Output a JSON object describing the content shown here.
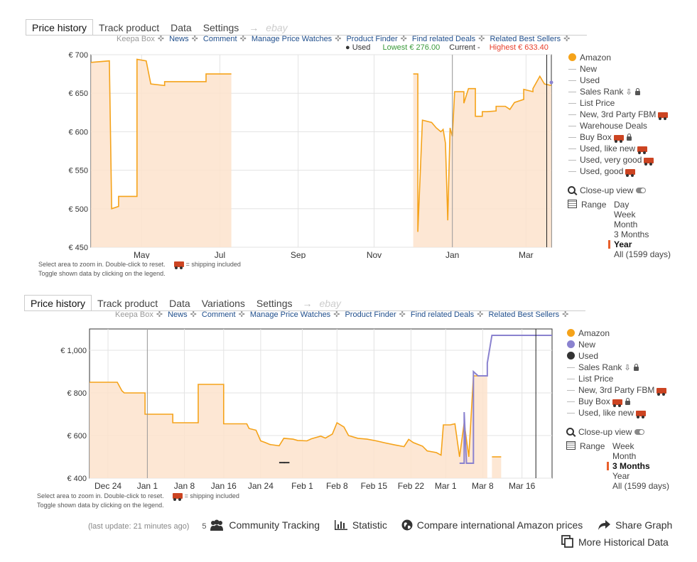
{
  "panel1": {
    "tabs": [
      "Price history",
      "Track product",
      "Data",
      "Settings"
    ],
    "arrow": "→",
    "ebay": "ebay",
    "links": [
      "Keepa Box",
      "News",
      "Comment",
      "Manage Price Watches",
      "Product Finder",
      "Find related Deals",
      "Related Best Sellers"
    ],
    "status": {
      "used": "Used",
      "lowest": "Lowest € 276.00",
      "current": "Current -",
      "highest": "Highest € 633.40"
    },
    "hint1": "Select area to zoom in. Double-click to reset.",
    "hint_ship": "= shipping included",
    "hint2": "Toggle shown data by clicking on the legend.",
    "legend": [
      "Amazon",
      "New",
      "Used",
      "Sales Rank",
      "List Price",
      "New, 3rd Party FBM",
      "Warehouse Deals",
      "Buy Box",
      "Used, like new",
      "Used, very good",
      "Used, good"
    ],
    "closeup": "Close-up view",
    "range_label": "Range",
    "range_options": [
      "Day",
      "Week",
      "Month",
      "3 Months",
      "Year",
      "All (1599 days)"
    ],
    "range_selected": "Year"
  },
  "panel2": {
    "tabs": [
      "Price history",
      "Track product",
      "Data",
      "Variations",
      "Settings"
    ],
    "arrow": "→",
    "ebay": "ebay",
    "links": [
      "Keepa Box",
      "News",
      "Comment",
      "Manage Price Watches",
      "Product Finder",
      "Find related Deals",
      "Related Best Sellers"
    ],
    "hint1": "Select area to zoom in. Double-click to reset.",
    "hint_ship": "= shipping included",
    "hint2": "Toggle shown data by clicking on the legend.",
    "legend": [
      "Amazon",
      "New",
      "Used",
      "Sales Rank",
      "List Price",
      "New, 3rd Party FBM",
      "Buy Box",
      "Used, like new"
    ],
    "closeup": "Close-up view",
    "range_label": "Range",
    "range_options": [
      "Week",
      "Month",
      "3 Months",
      "Year",
      "All (1599 days)"
    ],
    "range_selected": "3 Months"
  },
  "footer": {
    "last_update": "(last update: 21 minutes ago)",
    "tracking_count": "5",
    "community": "Community Tracking",
    "statistic": "Statistic",
    "compare": "Compare international Amazon prices",
    "share": "Share Graph",
    "more": "More Historical Data"
  },
  "colors": {
    "amazon": "#f5a31a",
    "new": "#8a82cf",
    "used": "#333333",
    "fill": "#fde3cc",
    "lowest": "#3a9a3a",
    "highest": "#e8402c"
  },
  "chart_data": [
    {
      "type": "line",
      "ylim": [
        450,
        700
      ],
      "yticks": [
        450,
        500,
        550,
        600,
        650,
        700
      ],
      "ytick_labels": [
        "€ 450",
        "€ 500",
        "€ 550",
        "€ 600",
        "€ 650",
        "€ 700"
      ],
      "xticks": [
        "May",
        "Jul",
        "Sep",
        "Nov",
        "Jan",
        "Mar"
      ],
      "xtick_pos": [
        0.11,
        0.28,
        0.45,
        0.615,
        0.785,
        0.945
      ],
      "series": [
        {
          "name": "Amazon",
          "segments": [
            [
              [
                0.0,
                690
              ],
              [
                0.04,
                692
              ],
              [
                0.04,
                692
              ],
              [
                0.045,
                500
              ],
              [
                0.06,
                503
              ],
              [
                0.06,
                516
              ],
              [
                0.1,
                516
              ],
              [
                0.1,
                694
              ],
              [
                0.12,
                692
              ],
              [
                0.13,
                662
              ],
              [
                0.16,
                660
              ],
              [
                0.16,
                665
              ],
              [
                0.18,
                665
              ],
              [
                0.25,
                665
              ],
              [
                0.25,
                675
              ],
              [
                0.305,
                675
              ]
            ],
            [
              [
                0.7,
                675
              ],
              [
                0.71,
                675
              ],
              [
                0.71,
                470
              ],
              [
                0.72,
                615
              ],
              [
                0.74,
                612
              ],
              [
                0.75,
                605
              ],
              [
                0.76,
                600
              ],
              [
                0.765,
                603
              ],
              [
                0.77,
                585
              ],
              [
                0.775,
                485
              ],
              [
                0.78,
                605
              ],
              [
                0.785,
                594
              ],
              [
                0.79,
                652
              ],
              [
                0.81,
                652
              ],
              [
                0.81,
                637
              ],
              [
                0.82,
                656
              ],
              [
                0.835,
                656
              ],
              [
                0.835,
                620
              ],
              [
                0.85,
                620
              ],
              [
                0.85,
                626
              ],
              [
                0.86,
                626
              ],
              [
                0.88,
                627
              ],
              [
                0.88,
                633
              ],
              [
                0.9,
                633
              ],
              [
                0.91,
                629
              ],
              [
                0.92,
                638
              ],
              [
                0.94,
                642
              ],
              [
                0.94,
                655
              ],
              [
                0.96,
                652
              ],
              [
                0.96,
                656
              ],
              [
                0.975,
                672
              ],
              [
                0.985,
                662
              ],
              [
                1.0,
                660
              ]
            ]
          ]
        },
        {
          "name": "Used",
          "points": [
            [
              1.0,
              664
            ]
          ]
        }
      ]
    },
    {
      "type": "line",
      "ylim": [
        400,
        1100
      ],
      "yticks": [
        400,
        600,
        800,
        1000
      ],
      "ytick_labels": [
        "€ 400",
        "€ 600",
        "€ 800",
        "€ 1,000"
      ],
      "xticks": [
        "Dec 24",
        "Jan 1",
        "Jan 8",
        "Jan 16",
        "Jan 24",
        "Feb 1",
        "Feb 8",
        "Feb 15",
        "Feb 22",
        "Mar 1",
        "Mar 8",
        "Mar 16"
      ],
      "xtick_pos": [
        0.04,
        0.125,
        0.205,
        0.29,
        0.37,
        0.46,
        0.535,
        0.615,
        0.695,
        0.77,
        0.85,
        0.935
      ],
      "series": [
        {
          "name": "Amazon",
          "segments": [
            [
              [
                0.0,
                850
              ],
              [
                0.06,
                850
              ],
              [
                0.065,
                830
              ],
              [
                0.07,
                810
              ],
              [
                0.075,
                800
              ],
              [
                0.12,
                800
              ],
              [
                0.12,
                700
              ],
              [
                0.18,
                700
              ],
              [
                0.18,
                660
              ],
              [
                0.235,
                660
              ],
              [
                0.235,
                840
              ],
              [
                0.29,
                840
              ],
              [
                0.29,
                655
              ],
              [
                0.34,
                655
              ],
              [
                0.345,
                633
              ],
              [
                0.36,
                625
              ],
              [
                0.37,
                575
              ],
              [
                0.38,
                567
              ],
              [
                0.39,
                558
              ],
              [
                0.41,
                552
              ],
              [
                0.42,
                587
              ],
              [
                0.44,
                583
              ],
              [
                0.45,
                577
              ],
              [
                0.47,
                575
              ],
              [
                0.48,
                585
              ],
              [
                0.5,
                597
              ],
              [
                0.51,
                588
              ],
              [
                0.525,
                607
              ],
              [
                0.535,
                660
              ],
              [
                0.55,
                640
              ],
              [
                0.56,
                600
              ],
              [
                0.58,
                587
              ],
              [
                0.6,
                583
              ],
              [
                0.62,
                575
              ],
              [
                0.64,
                565
              ],
              [
                0.66,
                556
              ],
              [
                0.68,
                548
              ],
              [
                0.69,
                582
              ],
              [
                0.7,
                567
              ],
              [
                0.72,
                550
              ],
              [
                0.73,
                528
              ],
              [
                0.75,
                520
              ],
              [
                0.76,
                508
              ],
              [
                0.765,
                650
              ],
              [
                0.78,
                650
              ],
              [
                0.79,
                655
              ],
              [
                0.8,
                500
              ],
              [
                0.81,
                660
              ],
              [
                0.82,
                500
              ],
              [
                0.83,
                880
              ],
              [
                0.86,
                880
              ]
            ],
            [
              [
                0.87,
                500
              ],
              [
                0.89,
                500
              ]
            ]
          ]
        },
        {
          "name": "New",
          "segments": [
            [
              [
                0.8,
                470
              ],
              [
                0.81,
                470
              ],
              [
                0.81,
                710
              ],
              [
                0.815,
                470
              ],
              [
                0.83,
                470
              ],
              [
                0.83,
                900
              ],
              [
                0.84,
                880
              ],
              [
                0.86,
                880
              ],
              [
                0.86,
                940
              ],
              [
                0.87,
                1070
              ],
              [
                0.93,
                1070
              ],
              [
                1.0,
                1070
              ]
            ]
          ]
        },
        {
          "name": "Used",
          "points": [
            [
              0.41,
              473
            ],
            [
              0.42,
              473
            ]
          ]
        }
      ]
    }
  ]
}
